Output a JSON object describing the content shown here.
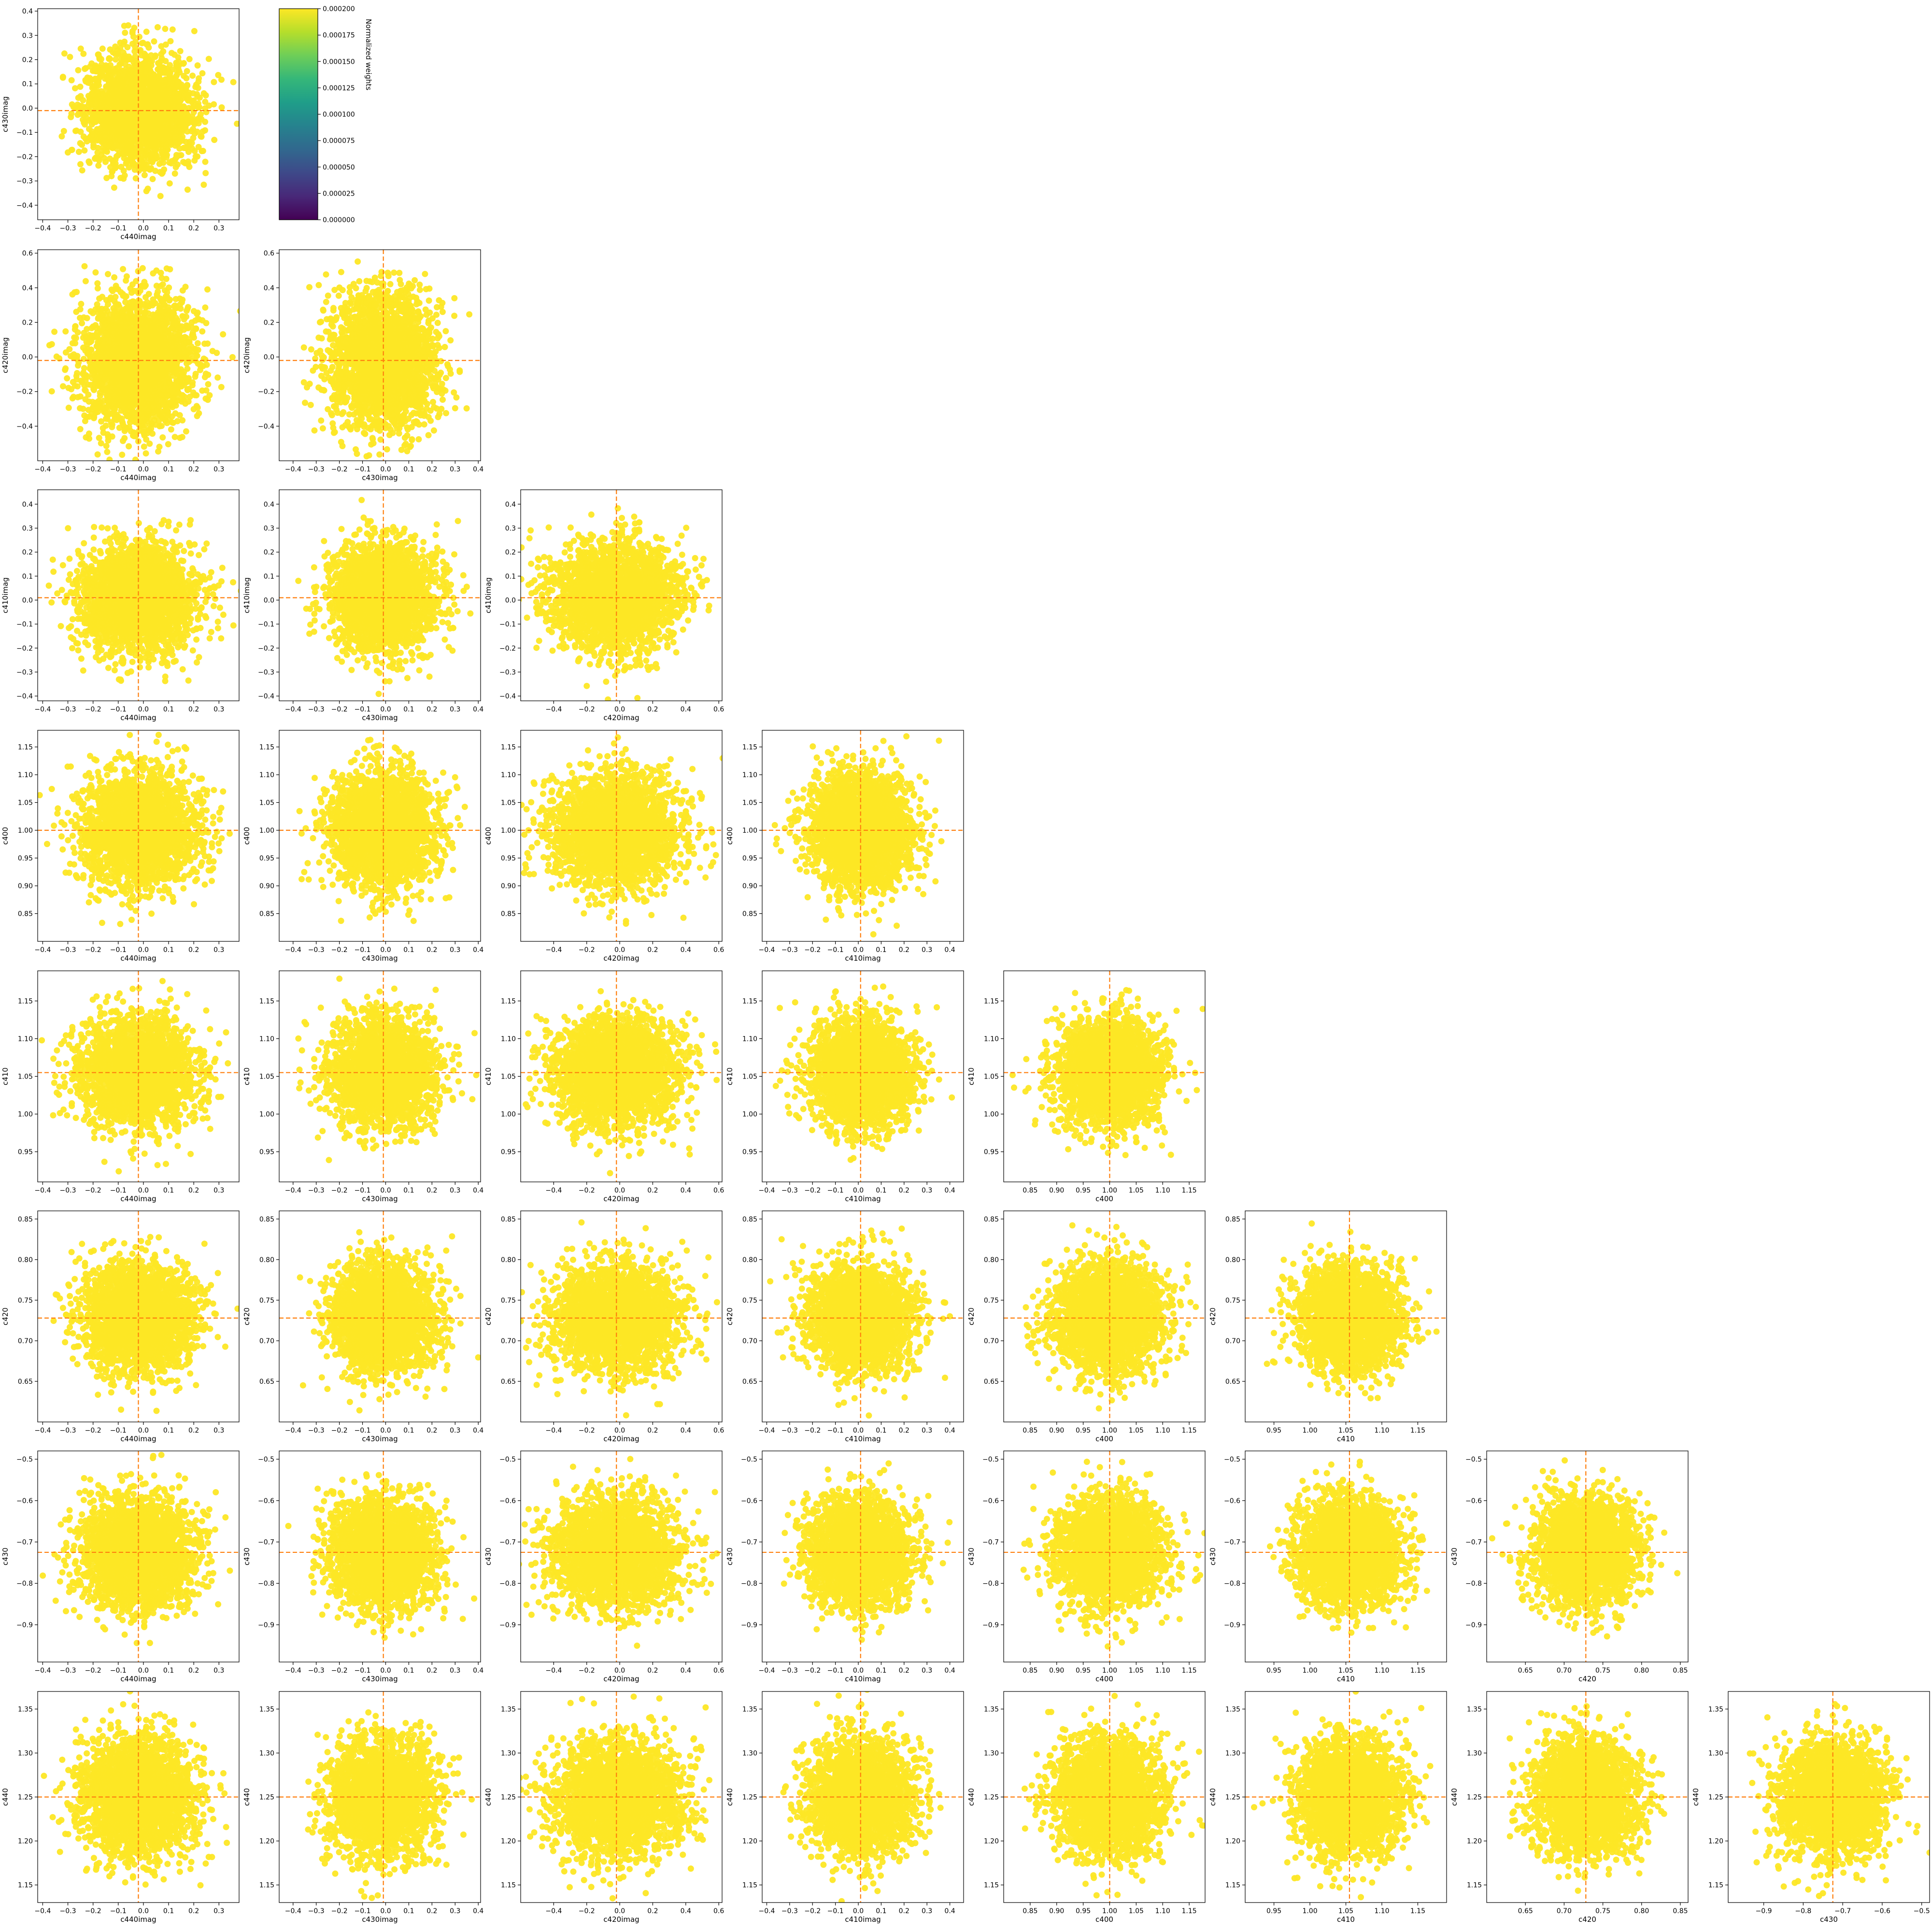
{
  "chart_data": {
    "type": "scatter",
    "layout": "lower-triangular corner plot",
    "variables": [
      "c440imag",
      "c430imag",
      "c420imag",
      "c410imag",
      "c400",
      "c410",
      "c420",
      "c430",
      "c440"
    ],
    "ranges": {
      "c440imag": [
        -0.42,
        0.38
      ],
      "c430imag": [
        -0.46,
        0.41
      ],
      "c420imag": [
        -0.6,
        0.62
      ],
      "c410imag": [
        -0.42,
        0.46
      ],
      "c400": [
        0.8,
        1.18
      ],
      "c410": [
        0.91,
        1.19
      ],
      "c420": [
        0.6,
        0.86
      ],
      "c430": [
        -0.99,
        -0.48
      ],
      "c440": [
        1.13,
        1.37
      ]
    },
    "ticks": {
      "c440imag": [
        -0.4,
        -0.3,
        -0.2,
        -0.1,
        0.0,
        0.1,
        0.2,
        0.3
      ],
      "c430imag": [
        -0.4,
        -0.3,
        -0.2,
        -0.1,
        0.0,
        0.1,
        0.2,
        0.3,
        0.4
      ],
      "c420imag": [
        -0.4,
        -0.2,
        0.0,
        0.2,
        0.4,
        0.6
      ],
      "c410imag": [
        -0.4,
        -0.3,
        -0.2,
        -0.1,
        0.0,
        0.1,
        0.2,
        0.3,
        0.4
      ],
      "c400": [
        0.85,
        0.9,
        0.95,
        1.0,
        1.05,
        1.1,
        1.15
      ],
      "c410": [
        0.95,
        1.0,
        1.05,
        1.1,
        1.15
      ],
      "c420": [
        0.65,
        0.7,
        0.75,
        0.8,
        0.85
      ],
      "c430": [
        -0.9,
        -0.8,
        -0.7,
        -0.6,
        -0.5
      ],
      "c440": [
        1.15,
        1.2,
        1.25,
        1.3,
        1.35
      ]
    },
    "x_ticks": {
      "c430imag": [
        -0.4,
        -0.3,
        -0.2,
        -0.1,
        0.0,
        0.1,
        0.2,
        0.3,
        0.4
      ],
      "c420imag": [
        -0.4,
        -0.2,
        0.0,
        0.2,
        0.4,
        0.6
      ],
      "c410imag": [
        -0.4,
        -0.3,
        -0.2,
        -0.1,
        0.0,
        0.1,
        0.2,
        0.3,
        0.4
      ],
      "c400": [
        0.85,
        0.9,
        0.95,
        1.0,
        1.05,
        1.1,
        1.15
      ],
      "c410": [
        0.95,
        1.0,
        1.05,
        1.1,
        1.15
      ],
      "c420": [
        0.65,
        0.7,
        0.75,
        0.8,
        0.85
      ],
      "c430": [
        -0.9,
        -0.8,
        -0.7,
        -0.6,
        -0.5
      ],
      "c440imag": [
        -0.4,
        -0.3,
        -0.2,
        -0.1,
        0.0,
        0.1,
        0.2,
        0.3
      ]
    },
    "truth_values": {
      "c440imag": -0.02,
      "c430imag": -0.01,
      "c420imag": -0.02,
      "c410imag": 0.01,
      "c400": 1.0,
      "c410": 1.055,
      "c420": 0.728,
      "c430": -0.725,
      "c440": 1.25
    },
    "spread_sigma": {
      "c440imag": 0.11,
      "c430imag": 0.11,
      "c420imag": 0.19,
      "c410imag": 0.11,
      "c400": 0.05,
      "c410": 0.035,
      "c420": 0.032,
      "c430": 0.065,
      "c440": 0.032
    },
    "marker_color": "#fde725",
    "truth_line_color": "#ff7f0e",
    "truth_line_style": "dashed",
    "grid": false,
    "colorbar": {
      "label": "Normalized weights",
      "ticks": [
        "0.000000",
        "0.000025",
        "0.000050",
        "0.000075",
        "0.000100",
        "0.000125",
        "0.000150",
        "0.000175",
        "0.000200"
      ],
      "range": [
        0.0,
        0.0002
      ],
      "colormap": "viridis",
      "colors": [
        "#440154",
        "#482878",
        "#3e4989",
        "#31688e",
        "#26828e",
        "#1f9e89",
        "#35b779",
        "#6ece58",
        "#b5de2b",
        "#fde725"
      ]
    }
  }
}
